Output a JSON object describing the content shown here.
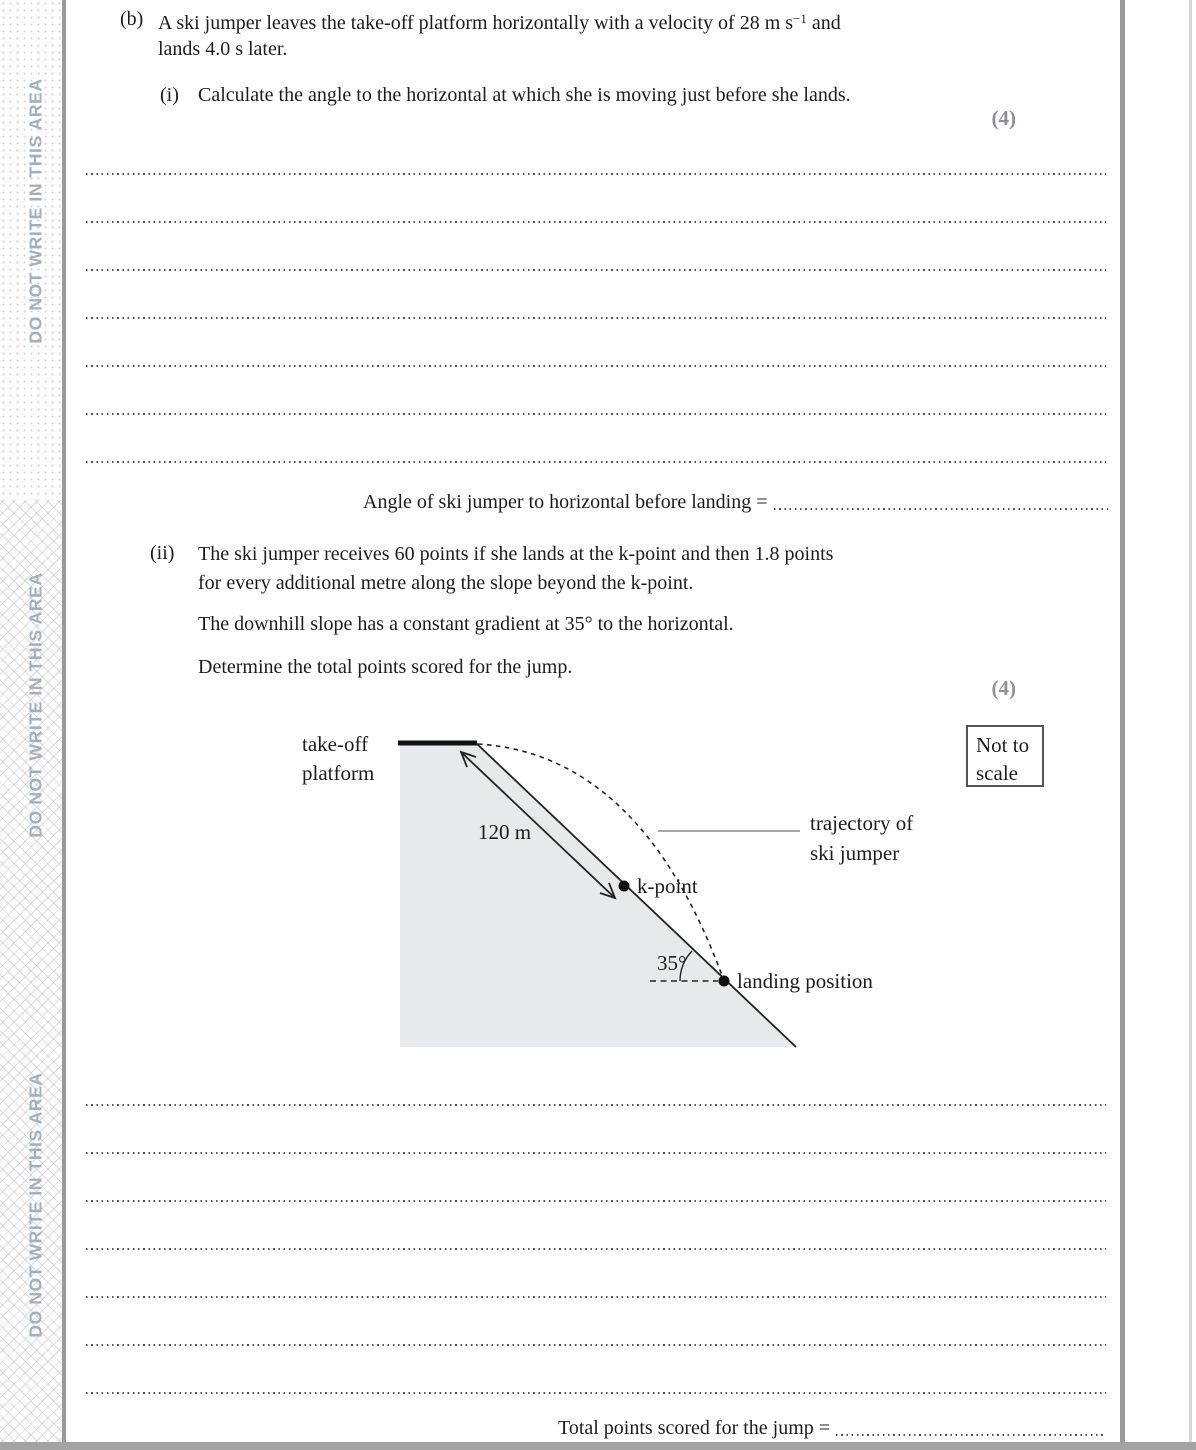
{
  "watermark": {
    "text": "DO NOT WRITE IN THIS AREA"
  },
  "part_b": {
    "label": "(b)",
    "line1_pre": "A ski jumper leaves the take-off platform horizontally with a velocity of 28 m s",
    "line1_sup": "−1",
    "line1_post": " and",
    "line2": "lands 4.0 s later."
  },
  "q_i": {
    "label": "(i)",
    "text": "Calculate the angle to the horizontal at which she is moving just before she lands.",
    "marks": "(4)",
    "answer_label": "Angle of ski jumper to horizontal before landing =",
    "answer_lines": 7
  },
  "q_ii": {
    "label": "(ii)",
    "text_line1": "The ski jumper receives 60 points if she lands at the k-point and then 1.8 points",
    "text_line2": "for every additional metre along the slope beyond the k-point.",
    "text2": "The downhill slope has a constant gradient at 35° to the horizontal.",
    "text3": "Determine the total points scored for the jump.",
    "marks": "(4)",
    "answer_lines": 7,
    "total_label": "Total points scored for the jump ="
  },
  "diagram": {
    "takeoff_label_line1": "take-off",
    "takeoff_label_line2": "platform",
    "distance_label": "120 m",
    "k_point_label": "k-point",
    "angle_label": "35°",
    "landing_label": "landing position",
    "trajectory_label_line1": "trajectory of",
    "trajectory_label_line2": "ski jumper",
    "scale_note_line1": "Not to",
    "scale_note_line2": "scale"
  },
  "colors": {
    "watermark": "#a4aebc",
    "marks_gray": "#8b9099",
    "rule_gray": "#9a9a9a",
    "slope_fill": "#e8e9ea",
    "ink": "#1c1c1c"
  }
}
